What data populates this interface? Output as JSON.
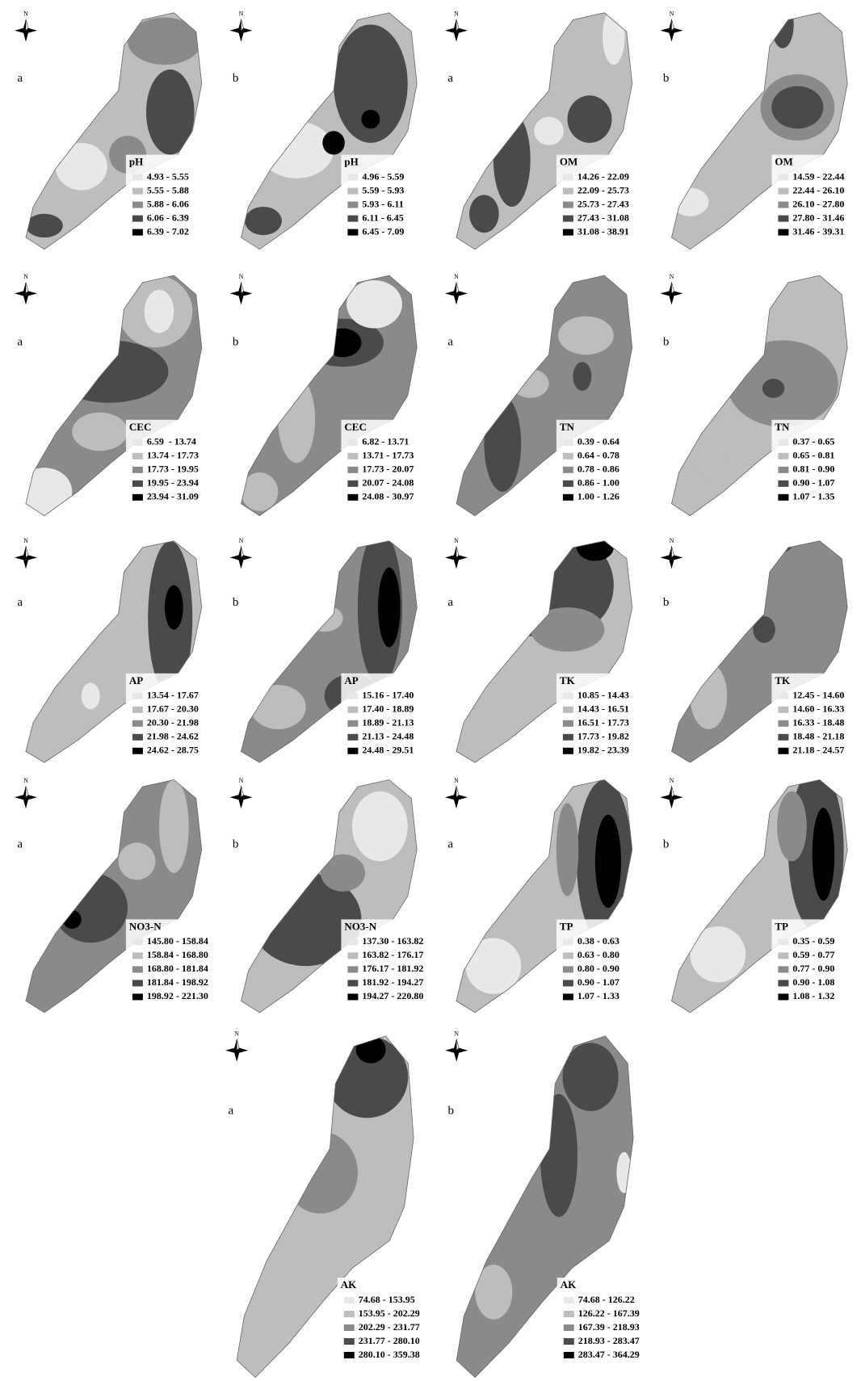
{
  "legend_colors": [
    "#e8e8e8",
    "#bdbdbd",
    "#8a8a8a",
    "#4a4a4a",
    "#000000"
  ],
  "panels": [
    {
      "label": "a",
      "north": "N",
      "title": "pH",
      "classes": [
        "4.93 - 5.55",
        "5.55 - 5.88",
        "5.88 - 6.06",
        "6.06 - 6.39",
        "6.39 - 7.02"
      ]
    },
    {
      "label": "b",
      "north": "N",
      "title": "pH",
      "classes": [
        "4.96 - 5.59",
        "5.59 - 5.93",
        "5.93 - 6.11",
        "6.11 - 6.45",
        "6.45 - 7.09"
      ]
    },
    {
      "label": "a",
      "north": "N",
      "title": "OM",
      "classes": [
        "14.26 - 22.09",
        "22.09 - 25.73",
        "25.73 - 27.43",
        "27.43 - 31.08",
        "31.08 - 38.91"
      ]
    },
    {
      "label": "b",
      "north": "N",
      "title": "OM",
      "classes": [
        "14.59 - 22.44",
        "22.44 - 26.10",
        "26.10 - 27.80",
        "27.80 - 31.46",
        "31.46 - 39.31"
      ]
    },
    {
      "label": "a",
      "north": "N",
      "title": "CEC",
      "classes": [
        "6.59  - 13.74",
        "13.74 - 17.73",
        "17.73 - 19.95",
        "19.95 - 23.94",
        "23.94 - 31.09"
      ]
    },
    {
      "label": "b",
      "north": "N",
      "title": "CEC",
      "classes": [
        "6.82 - 13.71",
        "13.71 - 17.73",
        "17.73 - 20.07",
        "20.07 - 24.08",
        "24.08 - 30.97"
      ]
    },
    {
      "label": "a",
      "north": "N",
      "title": "TN",
      "classes": [
        "0.39 - 0.64",
        "0.64 - 0.78",
        "0.78 - 0.86",
        "0.86 - 1.00",
        "1.00 - 1.26"
      ]
    },
    {
      "label": "b",
      "north": "N",
      "title": "TN",
      "classes": [
        "0.37 - 0.65",
        "0.65 - 0.81",
        "0.81 - 0.90",
        "0.90 - 1.07",
        "1.07 - 1.35"
      ]
    },
    {
      "label": "a",
      "north": "N",
      "title": "AP",
      "classes": [
        "13.54 - 17.67",
        "17.67 - 20.30",
        "20.30 - 21.98",
        "21.98 - 24.62",
        "24.62 - 28.75"
      ]
    },
    {
      "label": "b",
      "north": "N",
      "title": "AP",
      "classes": [
        "15.16 - 17.40",
        "17.40 - 18.89",
        "18.89 - 21.13",
        "21.13 - 24.48",
        "24.48 - 29.51"
      ]
    },
    {
      "label": "a",
      "north": "N",
      "title": "TK",
      "classes": [
        "10.85 - 14.43",
        "14.43 - 16.51",
        "16.51 - 17.73",
        "17.73 - 19.82",
        "19.82 - 23.39"
      ]
    },
    {
      "label": "b",
      "north": "N",
      "title": "TK",
      "classes": [
        "12.45 - 14.60",
        "14.60 - 16.33",
        "16.33 - 18.48",
        "18.48 - 21.18",
        "21.18 - 24.57"
      ]
    },
    {
      "label": "a",
      "north": "N",
      "title": "NO3-N",
      "classes": [
        "145.80 - 158.84",
        "158.84 - 168.80",
        "168.80 - 181.84",
        "181.84 - 198.92",
        "198.92 - 221.30"
      ]
    },
    {
      "label": "b",
      "north": "N",
      "title": "NO3-N",
      "classes": [
        "137.30 - 163.82",
        "163.82 - 176.17",
        "176.17 - 181.92",
        "181.92 - 194.27",
        "194.27 - 220.80"
      ]
    },
    {
      "label": "a",
      "north": "N",
      "title": "TP",
      "classes": [
        "0.38 - 0.63",
        "0.63 - 0.80",
        "0.80 - 0.90",
        "0.90 - 1.07",
        "1.07 - 1.33"
      ]
    },
    {
      "label": "b",
      "north": "N",
      "title": "TP",
      "classes": [
        "0.35 - 0.59",
        "0.59 - 0.77",
        "0.77 - 0.90",
        "0.90 - 1.08",
        "1.08 - 1.32"
      ]
    },
    {
      "label": "a",
      "north": "N",
      "title": "AK",
      "classes": [
        "74.68 - 153.95",
        "153.95 - 202.29",
        "202.29 - 231.77",
        "231.77 - 280.10",
        "280.10 - 359.38"
      ]
    },
    {
      "label": "b",
      "north": "N",
      "title": "AK",
      "classes": [
        "74.68 - 126.22",
        "126.22 - 167.39",
        "167.39 - 218.93",
        "218.93 - 283.47",
        "283.47 - 364.29"
      ]
    }
  ]
}
